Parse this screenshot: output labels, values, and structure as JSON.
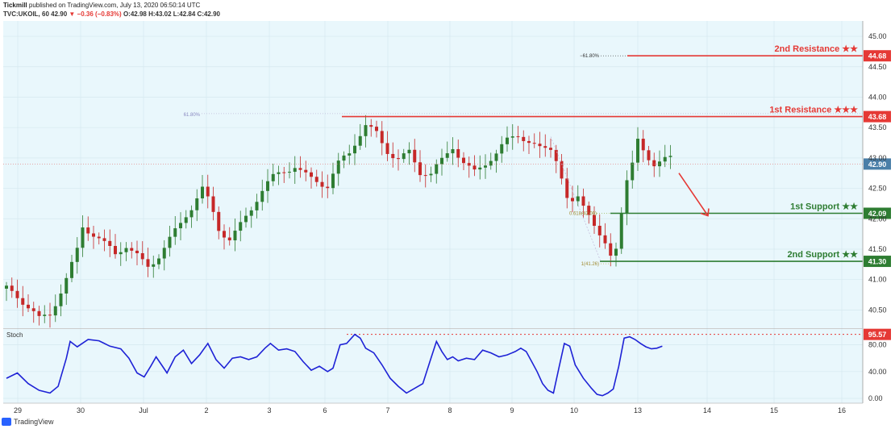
{
  "header": {
    "publisher": "Tickmill",
    "published_text": "published on TradingView.com, July 13, 2020 06:50:14 UTC",
    "symbol": "TVC:UKOIL, 60",
    "last": "42.90",
    "change": "▼ −0.36 (−0.83%)",
    "ohlc": "O:42.98 H:43.02 L:42.84 C:42.90"
  },
  "footer": {
    "brand": "TradingView"
  },
  "colors": {
    "panel_bg": "#e9f7fc",
    "up": "#2e7d32",
    "down": "#c62828",
    "resistance": "#e53935",
    "support": "#2e7d32",
    "stoch_line": "#1e22d6",
    "price_tag": "#4a7fa8"
  },
  "chart_data": [
    {
      "type": "candlestick",
      "title": "",
      "x_tick_labels": [
        "29",
        "30",
        "Jul",
        "2",
        "3",
        "6",
        "7",
        "8",
        "9",
        "10",
        "13",
        "14",
        "15",
        "16"
      ],
      "y_ticks": [
        40.5,
        41.0,
        41.5,
        42.0,
        42.5,
        43.0,
        43.5,
        44.0,
        44.5,
        45.0
      ],
      "ylim": [
        40.2,
        45.2
      ],
      "close_path": [
        [
          0,
          40.85
        ],
        [
          3,
          40.55
        ],
        [
          6,
          40.3
        ],
        [
          8,
          40.45
        ],
        [
          11,
          41.1
        ],
        [
          13,
          41.55
        ],
        [
          14,
          41.9
        ],
        [
          16,
          41.7
        ],
        [
          18,
          41.5
        ],
        [
          20,
          41.35
        ],
        [
          22,
          41.55
        ],
        [
          24,
          41.45
        ],
        [
          26,
          41.3
        ],
        [
          28,
          41.45
        ],
        [
          30,
          41.65
        ],
        [
          32,
          41.85
        ],
        [
          34,
          42.1
        ],
        [
          36,
          42.45
        ],
        [
          37.5,
          42.25
        ],
        [
          39,
          41.9
        ],
        [
          41,
          41.75
        ],
        [
          43,
          41.95
        ],
        [
          45,
          42.15
        ],
        [
          47,
          42.4
        ],
        [
          49,
          42.6
        ],
        [
          51,
          42.75
        ],
        [
          53,
          42.9
        ],
        [
          55,
          42.8
        ],
        [
          57,
          42.7
        ],
        [
          59,
          42.55
        ],
        [
          61,
          42.85
        ],
        [
          63,
          43.0
        ],
        [
          64.5,
          43.25
        ],
        [
          66,
          43.5
        ],
        [
          68,
          43.45
        ],
        [
          70,
          43.2
        ],
        [
          72,
          43.05
        ],
        [
          74,
          43.1
        ],
        [
          76,
          42.7
        ],
        [
          78,
          42.65
        ],
        [
          80,
          42.9
        ],
        [
          82,
          43.2
        ],
        [
          84,
          43.0
        ],
        [
          86,
          42.85
        ],
        [
          88,
          42.95
        ],
        [
          90,
          43.05
        ],
        [
          92,
          43.2
        ],
        [
          94,
          43.3
        ],
        [
          96,
          43.25
        ],
        [
          98,
          43.2
        ],
        [
          100,
          43.25
        ],
        [
          101.5,
          43.0
        ],
        [
          102.5,
          42.5
        ],
        [
          103.5,
          42.2
        ],
        [
          105,
          42.3
        ],
        [
          106.5,
          42.1
        ],
        [
          107.5,
          41.95
        ],
        [
          108.5,
          41.7
        ],
        [
          110,
          41.5
        ],
        [
          111,
          41.35
        ],
        [
          112,
          41.55
        ],
        [
          113,
          42.2
        ],
        [
          114,
          42.75
        ],
        [
          115,
          43.0
        ],
        [
          116,
          43.35
        ],
        [
          117.5,
          43.05
        ],
        [
          119,
          42.9
        ],
        [
          120.5,
          42.95
        ],
        [
          122,
          42.9
        ]
      ]
    },
    {
      "type": "line",
      "title": "Stoch",
      "y_ticks": [
        0.0,
        40.0,
        80.0
      ],
      "ylim": [
        -3,
        102
      ],
      "values": [
        [
          0,
          30
        ],
        [
          2,
          38
        ],
        [
          4,
          22
        ],
        [
          6,
          12
        ],
        [
          8,
          8
        ],
        [
          9.5,
          18
        ],
        [
          11,
          60
        ],
        [
          11.7,
          85
        ],
        [
          13,
          77
        ],
        [
          15,
          88
        ],
        [
          17,
          86
        ],
        [
          19,
          78
        ],
        [
          21,
          74
        ],
        [
          22.5,
          60
        ],
        [
          24,
          38
        ],
        [
          25.3,
          32
        ],
        [
          26.5,
          48
        ],
        [
          27.5,
          62
        ],
        [
          28.5,
          50
        ],
        [
          29.5,
          38
        ],
        [
          31,
          62
        ],
        [
          32.5,
          72
        ],
        [
          34,
          52
        ],
        [
          35.5,
          65
        ],
        [
          37,
          82
        ],
        [
          38.5,
          58
        ],
        [
          40,
          45
        ],
        [
          41.5,
          60
        ],
        [
          43,
          62
        ],
        [
          44.5,
          58
        ],
        [
          46,
          62
        ],
        [
          47.5,
          75
        ],
        [
          48.5,
          82
        ],
        [
          50,
          72
        ],
        [
          51.5,
          74
        ],
        [
          53,
          70
        ],
        [
          54.5,
          55
        ],
        [
          56,
          42
        ],
        [
          57.5,
          48
        ],
        [
          59,
          40
        ],
        [
          60,
          45
        ],
        [
          61.3,
          80
        ],
        [
          62.5,
          82
        ],
        [
          64,
          95.57
        ],
        [
          65,
          90
        ],
        [
          66,
          75
        ],
        [
          67.5,
          68
        ],
        [
          69,
          50
        ],
        [
          70.5,
          30
        ],
        [
          72,
          18
        ],
        [
          73.5,
          8
        ],
        [
          75,
          15
        ],
        [
          76.5,
          22
        ],
        [
          78,
          60
        ],
        [
          79,
          85
        ],
        [
          80,
          70
        ],
        [
          81,
          58
        ],
        [
          82,
          62
        ],
        [
          83,
          56
        ],
        [
          84.5,
          60
        ],
        [
          86,
          58
        ],
        [
          87.5,
          72
        ],
        [
          89,
          68
        ],
        [
          90.5,
          62
        ],
        [
          92,
          65
        ],
        [
          93.5,
          70
        ],
        [
          94.5,
          75
        ],
        [
          95.5,
          70
        ],
        [
          96.5,
          55
        ],
        [
          97.5,
          40
        ],
        [
          98.5,
          22
        ],
        [
          99.5,
          12
        ],
        [
          100.5,
          8
        ],
        [
          101.5,
          45
        ],
        [
          102.5,
          82
        ],
        [
          103.5,
          78
        ],
        [
          104.5,
          50
        ],
        [
          106,
          30
        ],
        [
          107.5,
          15
        ],
        [
          108.5,
          6
        ],
        [
          109.5,
          4
        ],
        [
          110.5,
          8
        ],
        [
          111.5,
          14
        ],
        [
          112.5,
          48
        ],
        [
          113.5,
          90
        ],
        [
          114.5,
          92
        ],
        [
          115.5,
          88
        ],
        [
          116.5,
          82
        ],
        [
          117.5,
          77
        ],
        [
          118.5,
          74
        ],
        [
          119.5,
          75
        ],
        [
          120.5,
          78
        ]
      ]
    }
  ],
  "levels": [
    {
      "name": "2nd Resistance ★★",
      "price": 44.68,
      "tag": "44.68",
      "type": "resistance"
    },
    {
      "name": "1st Resistance ★★★",
      "price": 43.68,
      "tag": "43.68",
      "type": "resistance"
    },
    {
      "name": "1st Support ★★",
      "price": 42.09,
      "tag": "42.09",
      "type": "support"
    },
    {
      "name": "2nd Support ★★",
      "price": 41.3,
      "tag": "41.30",
      "type": "support"
    }
  ],
  "current_price": {
    "price": 42.9,
    "tag": "42.90"
  },
  "fib_labels": {
    "left_618": "61.80%",
    "upper_618": "−61.80%",
    "mid_fib": "0.618(42.09)",
    "low_fib": "1(41.26)"
  },
  "stoch_level": {
    "value": 95.57,
    "tag": "95.57"
  },
  "projection": {
    "from": 42.75,
    "to": 42.05
  }
}
